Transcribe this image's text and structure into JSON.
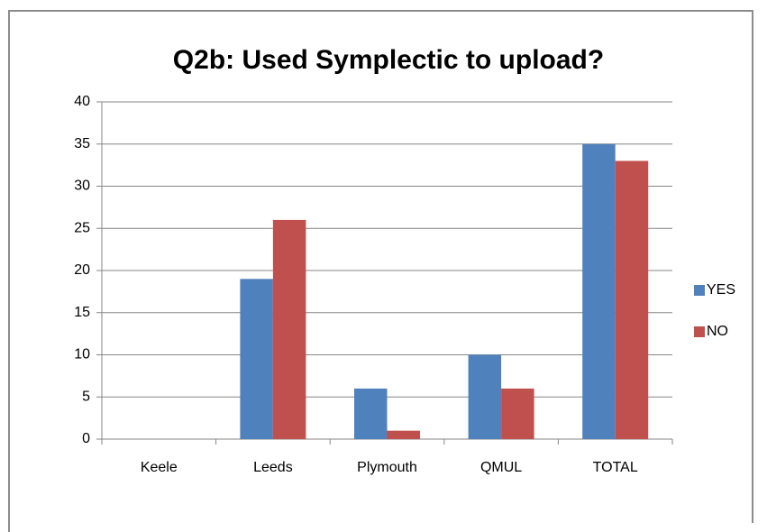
{
  "chart_data": {
    "type": "bar",
    "title": "Q2b: Used Symplectic to upload?",
    "categories": [
      "Keele",
      "Leeds",
      "Plymouth",
      "QMUL",
      "TOTAL"
    ],
    "series": [
      {
        "name": "YES",
        "color": "#4f81bd",
        "values": [
          0,
          19,
          6,
          10,
          35
        ]
      },
      {
        "name": "NO",
        "color": "#c0504d",
        "values": [
          0,
          26,
          1,
          6,
          33
        ]
      }
    ],
    "ylim": [
      0,
      40
    ],
    "yticks": [
      0,
      5,
      10,
      15,
      20,
      25,
      30,
      35,
      40
    ],
    "grid": true,
    "legend": "right"
  }
}
